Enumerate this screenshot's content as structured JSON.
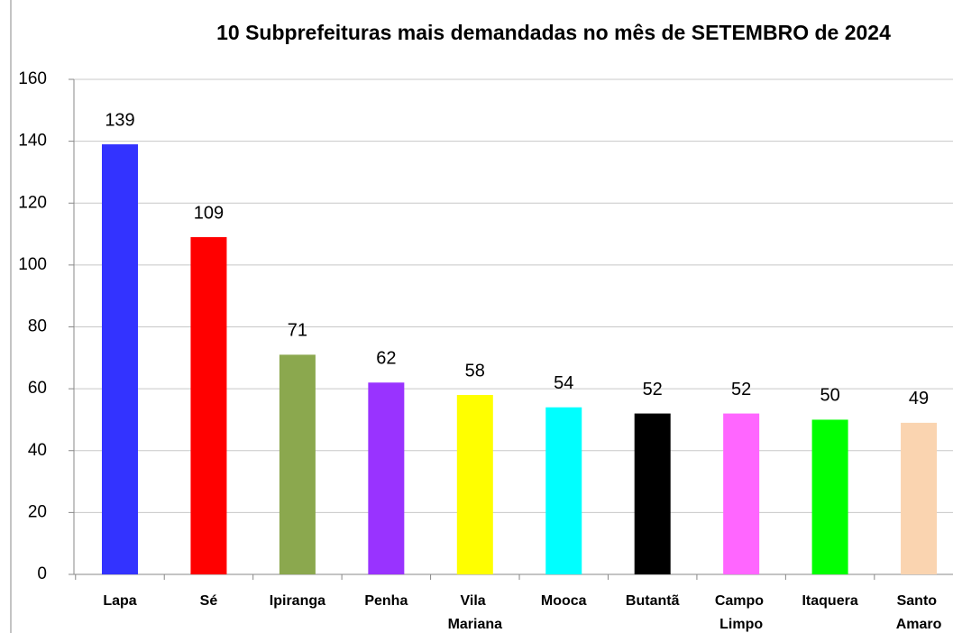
{
  "chart_data": {
    "type": "bar",
    "title": "10 Subprefeituras mais demandadas no mês de SETEMBRO de 2024",
    "categories": [
      "Lapa",
      "Sé",
      "Ipiranga",
      "Penha",
      "Vila Mariana",
      "Mooca",
      "Butantã",
      "Campo Limpo",
      "Itaquera",
      "Santo Amaro"
    ],
    "values": [
      139,
      109,
      71,
      62,
      58,
      54,
      52,
      52,
      50,
      49
    ],
    "colors": [
      "#3333ff",
      "#ff0000",
      "#8ba84e",
      "#9933ff",
      "#ffff00",
      "#00ffff",
      "#000000",
      "#ff66ff",
      "#00ff00",
      "#fad4b0"
    ],
    "ylim": [
      0,
      160
    ],
    "yticks": [
      0,
      20,
      40,
      60,
      80,
      100,
      120,
      140,
      160
    ],
    "grid": true
  }
}
